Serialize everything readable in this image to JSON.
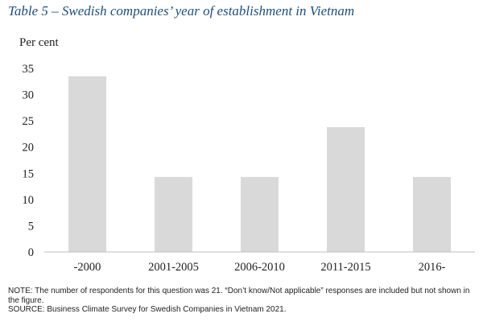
{
  "title": "Table 5 – Swedish companies’ year of establishment in Vietnam",
  "note": "NOTE: The number of respondents for this question was 21. “Don’t know/Not applicable” responses are included but not shown in the figure.",
  "source": "SOURCE: Business Climate Survey for Swedish Companies in Vietnam 2021.",
  "colors": {
    "bar": "#d9d9d9",
    "title": "#1f4e79",
    "axis": "#bfbfbf"
  },
  "chart_data": {
    "type": "bar",
    "title": "",
    "xlabel": "",
    "ylabel": "Per cent",
    "categories": [
      "-2000",
      "2001-2005",
      "2006-2010",
      "2011-2015",
      "2016-"
    ],
    "values": [
      33.5,
      14.3,
      14.3,
      23.8,
      14.3
    ],
    "ylim": [
      0,
      35
    ],
    "yticks": [
      0,
      5,
      10,
      15,
      20,
      25,
      30,
      35
    ],
    "grid": false,
    "legend": "none"
  }
}
